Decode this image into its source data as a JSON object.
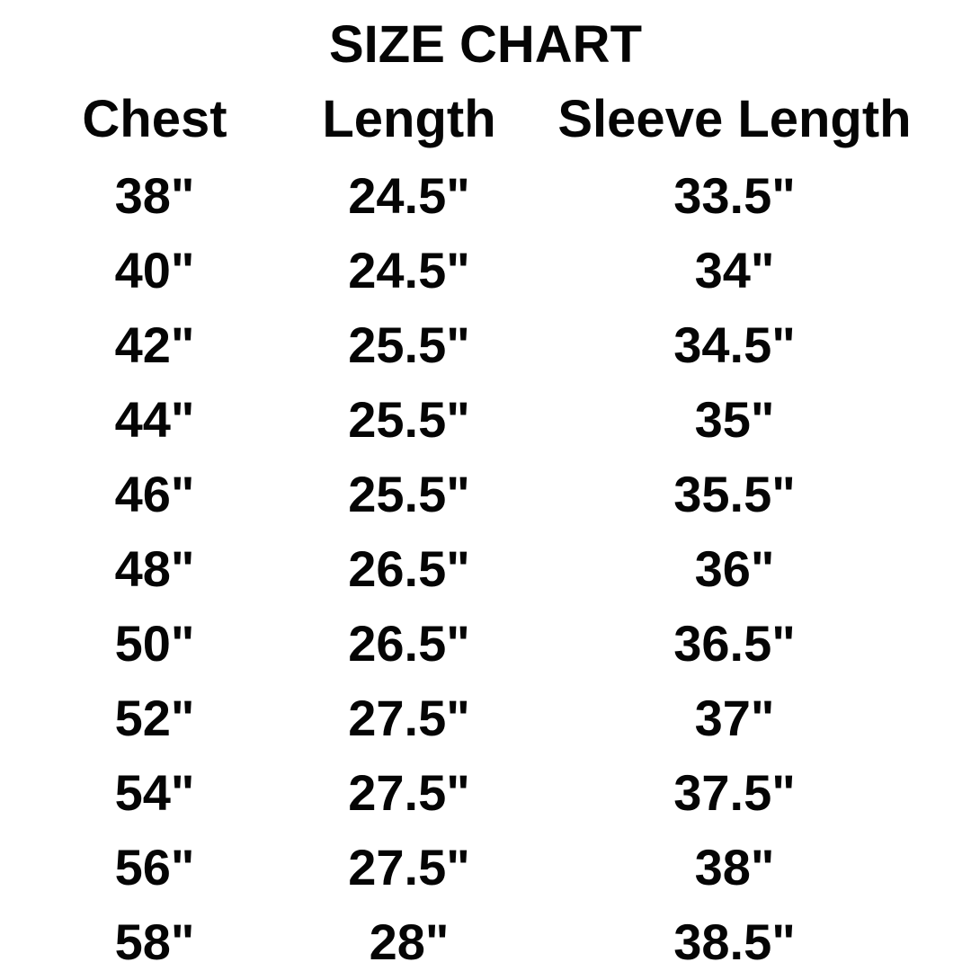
{
  "title": "SIZE CHART",
  "table": {
    "columns": [
      "Chest",
      "Length",
      "Sleeve Length"
    ],
    "rows": [
      [
        "38\"",
        "24.5\"",
        "33.5\""
      ],
      [
        "40\"",
        "24.5\"",
        "34\""
      ],
      [
        "42\"",
        "25.5\"",
        "34.5\""
      ],
      [
        "44\"",
        "25.5\"",
        "35\""
      ],
      [
        "46\"",
        "25.5\"",
        "35.5\""
      ],
      [
        "48\"",
        "26.5\"",
        "36\""
      ],
      [
        "50\"",
        "26.5\"",
        "36.5\""
      ],
      [
        "52\"",
        "27.5\"",
        "37\""
      ],
      [
        "54\"",
        "27.5\"",
        "37.5\""
      ],
      [
        "56\"",
        "27.5\"",
        "38\""
      ],
      [
        "58\"",
        "28\"",
        "38.5\""
      ]
    ]
  },
  "colors": {
    "text": "#050505",
    "background": "#ffffff"
  },
  "chart_data": {
    "type": "table",
    "title": "SIZE CHART",
    "columns": [
      "Chest",
      "Length",
      "Sleeve Length"
    ],
    "unit": "inches",
    "rows": [
      {
        "chest": 38,
        "length": 24.5,
        "sleeve_length": 33.5
      },
      {
        "chest": 40,
        "length": 24.5,
        "sleeve_length": 34
      },
      {
        "chest": 42,
        "length": 25.5,
        "sleeve_length": 34.5
      },
      {
        "chest": 44,
        "length": 25.5,
        "sleeve_length": 35
      },
      {
        "chest": 46,
        "length": 25.5,
        "sleeve_length": 35.5
      },
      {
        "chest": 48,
        "length": 26.5,
        "sleeve_length": 36
      },
      {
        "chest": 50,
        "length": 26.5,
        "sleeve_length": 36.5
      },
      {
        "chest": 52,
        "length": 27.5,
        "sleeve_length": 37
      },
      {
        "chest": 54,
        "length": 27.5,
        "sleeve_length": 37.5
      },
      {
        "chest": 56,
        "length": 27.5,
        "sleeve_length": 38
      },
      {
        "chest": 58,
        "length": 28,
        "sleeve_length": 38.5
      }
    ]
  }
}
